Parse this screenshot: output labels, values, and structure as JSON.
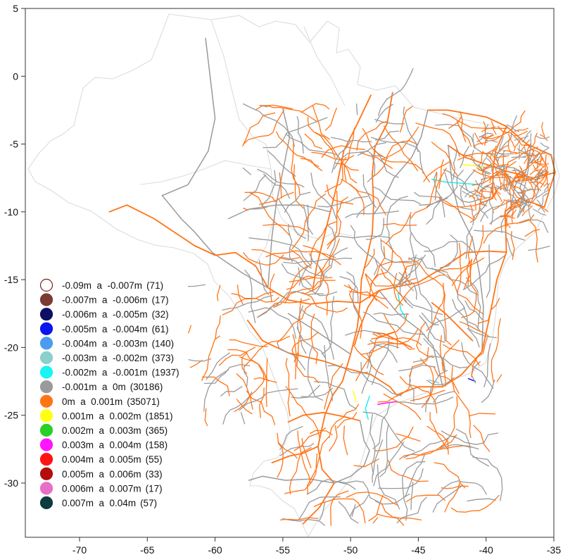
{
  "chart_data": {
    "type": "scatter",
    "xlim": [
      -74,
      -35
    ],
    "ylim": [
      -34,
      5
    ],
    "x_ticks": [
      {
        "value": -70,
        "label": "-70"
      },
      {
        "value": -65,
        "label": "-65"
      },
      {
        "value": -60,
        "label": "-60"
      },
      {
        "value": -55,
        "label": "-55"
      },
      {
        "value": -50,
        "label": "-50"
      },
      {
        "value": -45,
        "label": "-45"
      },
      {
        "value": -40,
        "label": "-40"
      },
      {
        "value": -35,
        "label": "-35"
      }
    ],
    "y_ticks": [
      {
        "value": 5,
        "label": "5"
      },
      {
        "value": 0,
        "label": "0"
      },
      {
        "value": -5,
        "label": "-5"
      },
      {
        "value": -10,
        "label": "-10"
      },
      {
        "value": -15,
        "label": "-15"
      },
      {
        "value": -20,
        "label": "-20"
      },
      {
        "value": -25,
        "label": "-25"
      },
      {
        "value": -30,
        "label": "-30"
      }
    ],
    "grid": false,
    "legend_position": "bottom-left",
    "series": [
      {
        "name": "-0.09m  a  -0.007m",
        "count": "(71)",
        "color": "#ffffff",
        "stroke": "#7a1f1f"
      },
      {
        "name": "-0.007m  a  -0.006m",
        "count": "(17)",
        "color": "#7b3a32"
      },
      {
        "name": "-0.006m  a  -0.005m",
        "count": "(32)",
        "color": "#0c0f63"
      },
      {
        "name": "-0.005m  a  -0.004m",
        "count": "(61)",
        "color": "#0a14ee"
      },
      {
        "name": "-0.004m  a  -0.003m",
        "count": "(140)",
        "color": "#4b9cf0"
      },
      {
        "name": "-0.003m  a  -0.002m",
        "count": "(373)",
        "color": "#8ccfcc"
      },
      {
        "name": "-0.002m  a  -0.001m",
        "count": "(1937)",
        "color": "#18f4f4"
      },
      {
        "name": "-0.001m  a  0m",
        "count": "(30186)",
        "color": "#9a9a9a"
      },
      {
        "name": "0m  a  0.001m",
        "count": "(35071)",
        "color": "#ff7417"
      },
      {
        "name": "0.001m  a  0.002m",
        "count": "(1851)",
        "color": "#ffff14"
      },
      {
        "name": "0.002m  a  0.003m",
        "count": "(365)",
        "color": "#28d028"
      },
      {
        "name": "0.003m  a  0.004m",
        "count": "(158)",
        "color": "#ff14ff"
      },
      {
        "name": "0.004m  a  0.005m",
        "count": "(55)",
        "color": "#ff1414"
      },
      {
        "name": "0.005m  a  0.006m",
        "count": "(33)",
        "color": "#b30c0c"
      },
      {
        "name": "0.006m  a  0.007m",
        "count": "(17)",
        "color": "#e86fc8"
      },
      {
        "name": "0.007m  a  0.04m",
        "count": "(57)",
        "color": "#0e3b3b"
      }
    ],
    "outline_color": "#dcdcdc",
    "roads": [
      {
        "series": 8,
        "points": [
          [
            -46.9,
            -1.2
          ],
          [
            -47.3,
            -3.5
          ],
          [
            -48.2,
            -5.2
          ],
          [
            -48.4,
            -7.2
          ],
          [
            -48.3,
            -9.5
          ],
          [
            -48.4,
            -11.6
          ],
          [
            -48.8,
            -13.4
          ],
          [
            -49.2,
            -15.0
          ],
          [
            -49.3,
            -16.7
          ],
          [
            -49.5,
            -18.5
          ],
          [
            -50.0,
            -20.5
          ],
          [
            -50.6,
            -22.5
          ],
          [
            -51.3,
            -23.5
          ],
          [
            -51.9,
            -25.0
          ],
          [
            -52.4,
            -27.3
          ],
          [
            -52.1,
            -29.0
          ],
          [
            -51.2,
            -30.0
          ]
        ]
      },
      {
        "series": 7,
        "points": [
          [
            -60.0,
            -3.1
          ],
          [
            -60.5,
            -5.5
          ],
          [
            -62.0,
            -8.0
          ],
          [
            -63.9,
            -8.8
          ]
        ]
      },
      {
        "series": 7,
        "points": [
          [
            -63.9,
            -8.8
          ],
          [
            -62.5,
            -10.5
          ],
          [
            -61.5,
            -11.5
          ],
          [
            -60.2,
            -13.0
          ],
          [
            -58.0,
            -14.5
          ],
          [
            -56.1,
            -15.6
          ]
        ]
      },
      {
        "series": 8,
        "points": [
          [
            -56.1,
            -15.6
          ],
          [
            -54.6,
            -16.5
          ],
          [
            -53.0,
            -16.8
          ],
          [
            -51.0,
            -16.6
          ],
          [
            -49.3,
            -16.7
          ],
          [
            -47.9,
            -15.8
          ]
        ]
      },
      {
        "series": 7,
        "points": [
          [
            -47.9,
            -15.8
          ],
          [
            -46.5,
            -17.5
          ],
          [
            -44.8,
            -18.8
          ],
          [
            -43.9,
            -19.9
          ],
          [
            -43.2,
            -22.9
          ]
        ]
      },
      {
        "series": 8,
        "points": [
          [
            -47.9,
            -15.8
          ],
          [
            -45.0,
            -15.2
          ],
          [
            -43.0,
            -14.0
          ],
          [
            -41.5,
            -13.0
          ],
          [
            -39.8,
            -12.9
          ],
          [
            -38.5,
            -12.97
          ]
        ]
      },
      {
        "series": 8,
        "points": [
          [
            -38.5,
            -12.97
          ],
          [
            -38.6,
            -10.0
          ],
          [
            -37.5,
            -9.0
          ],
          [
            -35.7,
            -9.65
          ]
        ]
      },
      {
        "series": 8,
        "points": [
          [
            -35.7,
            -9.65
          ],
          [
            -35.2,
            -8.0
          ],
          [
            -34.9,
            -7.1
          ],
          [
            -35.2,
            -5.8
          ],
          [
            -37.0,
            -5.0
          ],
          [
            -38.5,
            -3.7
          ],
          [
            -40.0,
            -3.0
          ],
          [
            -42.8,
            -2.5
          ],
          [
            -44.3,
            -2.5
          ]
        ]
      },
      {
        "series": 7,
        "points": [
          [
            -44.3,
            -2.5
          ],
          [
            -44.8,
            -4.5
          ],
          [
            -45.5,
            -6.0
          ],
          [
            -46.8,
            -7.5
          ],
          [
            -47.5,
            -9.0
          ],
          [
            -48.3,
            -10.2
          ]
        ]
      },
      {
        "series": 8,
        "points": [
          [
            -42.8,
            -5.1
          ],
          [
            -41.5,
            -6.0
          ],
          [
            -40.0,
            -6.5
          ],
          [
            -38.5,
            -7.0
          ],
          [
            -36.5,
            -7.5
          ],
          [
            -34.9,
            -7.1
          ]
        ]
      },
      {
        "series": 7,
        "points": [
          [
            -42.8,
            -5.1
          ],
          [
            -42.5,
            -8.0
          ],
          [
            -42.0,
            -10.0
          ],
          [
            -41.0,
            -12.0
          ],
          [
            -40.5,
            -14.5
          ],
          [
            -40.2,
            -17.0
          ],
          [
            -40.3,
            -20.3
          ]
        ]
      },
      {
        "series": 8,
        "points": [
          [
            -46.6,
            -23.5
          ],
          [
            -45.0,
            -22.9
          ],
          [
            -43.2,
            -22.9
          ],
          [
            -41.8,
            -22.0
          ],
          [
            -40.3,
            -20.3
          ],
          [
            -39.8,
            -18.0
          ],
          [
            -39.2,
            -15.0
          ],
          [
            -38.5,
            -12.97
          ]
        ]
      },
      {
        "series": 8,
        "points": [
          [
            -46.6,
            -23.5
          ],
          [
            -47.1,
            -22.9
          ],
          [
            -48.5,
            -22.0
          ],
          [
            -50.5,
            -21.5
          ],
          [
            -52.0,
            -21.0
          ],
          [
            -54.6,
            -20.4
          ],
          [
            -56.5,
            -19.5
          ],
          [
            -57.6,
            -18.0
          ]
        ]
      },
      {
        "series": 8,
        "points": [
          [
            -56.1,
            -15.6
          ],
          [
            -57.0,
            -14.0
          ],
          [
            -58.5,
            -13.0
          ],
          [
            -60.0,
            -13.2
          ],
          [
            -61.5,
            -12.5
          ],
          [
            -63.0,
            -11.5
          ],
          [
            -64.5,
            -10.5
          ],
          [
            -65.5,
            -10.0
          ]
        ]
      },
      {
        "series": 8,
        "points": [
          [
            -49.3,
            -25.4
          ],
          [
            -50.5,
            -25.1
          ],
          [
            -52.0,
            -24.8
          ],
          [
            -53.5,
            -25.0
          ],
          [
            -54.6,
            -25.5
          ]
        ]
      },
      {
        "series": 7,
        "points": [
          [
            -49.3,
            -25.4
          ],
          [
            -49.0,
            -26.9
          ],
          [
            -48.6,
            -27.6
          ],
          [
            -49.0,
            -28.7
          ],
          [
            -50.0,
            -29.5
          ],
          [
            -51.2,
            -30.0
          ]
        ]
      },
      {
        "series": 8,
        "points": [
          [
            -51.2,
            -30.0
          ],
          [
            -52.3,
            -31.8
          ],
          [
            -53.5,
            -33.0
          ]
        ]
      },
      {
        "series": 7,
        "points": [
          [
            -51.2,
            -30.0
          ],
          [
            -53.0,
            -29.7
          ],
          [
            -54.8,
            -29.8
          ],
          [
            -56.5,
            -29.5
          ],
          [
            -57.5,
            -29.8
          ]
        ]
      },
      {
        "series": 8,
        "points": [
          [
            -52.4,
            -27.3
          ],
          [
            -53.5,
            -27.8
          ],
          [
            -54.5,
            -28.0
          ],
          [
            -55.8,
            -28.5
          ]
        ]
      },
      {
        "series": 7,
        "points": [
          [
            -55.0,
            -2.4
          ],
          [
            -54.5,
            -4.5
          ],
          [
            -55.0,
            -7.0
          ],
          [
            -55.5,
            -9.5
          ],
          [
            -55.8,
            -11.8
          ],
          [
            -56.1,
            -15.6
          ]
        ]
      },
      {
        "series": 8,
        "points": [
          [
            -48.5,
            -1.4
          ],
          [
            -49.5,
            -3.5
          ],
          [
            -50.5,
            -5.5
          ],
          [
            -51.0,
            -8.0
          ],
          [
            -51.5,
            -10.0
          ],
          [
            -52.0,
            -12.0
          ],
          [
            -52.5,
            -14.0
          ],
          [
            -52.8,
            -15.8
          ]
        ]
      },
      {
        "series": 7,
        "points": [
          [
            -51.5,
            -10.0
          ],
          [
            -53.5,
            -9.5
          ],
          [
            -55.5,
            -9.5
          ],
          [
            -57.5,
            -9.8
          ],
          [
            -59.0,
            -10.5
          ]
        ]
      },
      {
        "series": 8,
        "points": [
          [
            -44.0,
            -16.7
          ],
          [
            -43.0,
            -17.5
          ],
          [
            -42.0,
            -18.5
          ],
          [
            -41.0,
            -19.5
          ]
        ]
      },
      {
        "series": 7,
        "points": [
          [
            -50.0,
            -20.5
          ],
          [
            -51.5,
            -19.5
          ],
          [
            -53.0,
            -18.5
          ],
          [
            -54.6,
            -17.5
          ]
        ]
      },
      {
        "series": 8,
        "points": [
          [
            -38.5,
            -3.7
          ],
          [
            -39.3,
            -5.5
          ],
          [
            -39.5,
            -7.0
          ],
          [
            -39.5,
            -9.0
          ],
          [
            -40.5,
            -9.4
          ]
        ]
      },
      {
        "series": 7,
        "points": [
          [
            -36.5,
            -5.5
          ],
          [
            -37.0,
            -6.8
          ],
          [
            -37.5,
            -8.2
          ],
          [
            -37.0,
            -9.5
          ]
        ]
      },
      {
        "series": 8,
        "points": [
          [
            -45.5,
            -20.0
          ],
          [
            -46.5,
            -19.5
          ],
          [
            -47.5,
            -19.0
          ],
          [
            -48.3,
            -18.9
          ]
        ]
      },
      {
        "series": 8,
        "points": [
          [
            -47.9,
            -15.8
          ],
          [
            -48.7,
            -17.0
          ],
          [
            -49.3,
            -18.5
          ],
          [
            -49.7,
            -19.8
          ]
        ]
      },
      {
        "series": 8,
        "points": [
          [
            -65.5,
            -10.0
          ],
          [
            -66.5,
            -9.5
          ],
          [
            -67.8,
            -10.0
          ]
        ]
      },
      {
        "series": 7,
        "points": [
          [
            -60.0,
            -3.1
          ],
          [
            -60.7,
            2.8
          ]
        ]
      },
      {
        "series": 6,
        "points": [
          [
            -44.0,
            -7.6
          ],
          [
            -43.0,
            -7.8
          ],
          [
            -41.7,
            -7.9
          ],
          [
            -40.5,
            -8.0
          ]
        ]
      },
      {
        "series": 6,
        "points": [
          [
            -48.6,
            -23.6
          ],
          [
            -48.9,
            -24.5
          ],
          [
            -48.7,
            -25.3
          ]
        ]
      },
      {
        "series": 6,
        "points": [
          [
            -46.5,
            -16.0
          ],
          [
            -46.3,
            -17.2
          ],
          [
            -45.9,
            -17.9
          ]
        ]
      },
      {
        "series": 9,
        "points": [
          [
            -41.8,
            -6.5
          ],
          [
            -40.8,
            -6.6
          ],
          [
            -39.8,
            -6.8
          ]
        ]
      },
      {
        "series": 9,
        "points": [
          [
            -49.8,
            -23.2
          ],
          [
            -49.6,
            -24.0
          ]
        ]
      },
      {
        "series": 11,
        "points": [
          [
            -46.6,
            -24.0
          ],
          [
            -47.4,
            -24.1
          ],
          [
            -48.0,
            -24.2
          ]
        ]
      },
      {
        "series": 5,
        "points": [
          [
            -44.2,
            -22.4
          ],
          [
            -43.5,
            -22.6
          ]
        ]
      },
      {
        "series": 3,
        "points": [
          [
            -41.3,
            -22.3
          ],
          [
            -40.8,
            -22.5
          ]
        ]
      }
    ]
  }
}
